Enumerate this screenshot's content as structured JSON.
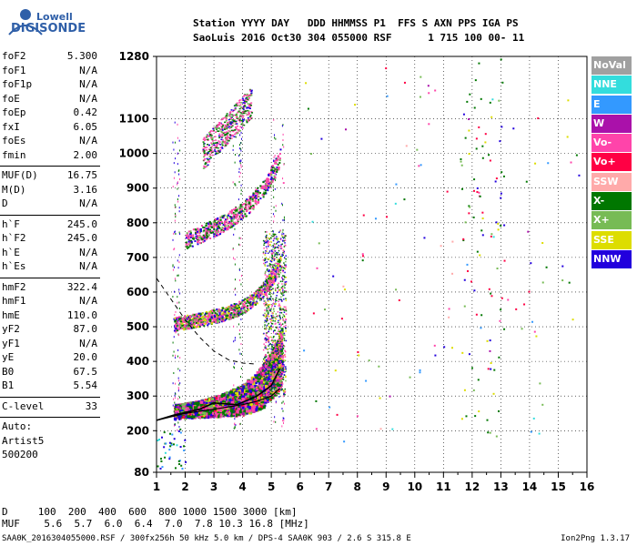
{
  "brand": {
    "line1": "Lowell",
    "line2": "DIGISONDE"
  },
  "header": {
    "labels": "Station YYYY DAY   DDD HHMMSS P1  FFS S AXN PPS IGA PS",
    "values": "SaoLuis 2016 Oct30 304 055000 RSF      1 715 100 00- 11"
  },
  "params": {
    "group1": [
      {
        "name": "foF2",
        "value": "5.300"
      },
      {
        "name": "foF1",
        "value": "N/A"
      },
      {
        "name": "foF1p",
        "value": "N/A"
      },
      {
        "name": "foE",
        "value": "N/A"
      },
      {
        "name": "foEp",
        "value": "0.42"
      },
      {
        "name": "fxI",
        "value": "6.05"
      },
      {
        "name": "foEs",
        "value": "N/A"
      },
      {
        "name": "fmin",
        "value": "2.00"
      }
    ],
    "group2": [
      {
        "name": "MUF(D)",
        "value": "16.75"
      },
      {
        "name": "M(D)",
        "value": "3.16"
      },
      {
        "name": "D",
        "value": "N/A"
      }
    ],
    "group3": [
      {
        "name": "h`F",
        "value": "245.0"
      },
      {
        "name": "h`F2",
        "value": "245.0"
      },
      {
        "name": "h`E",
        "value": "N/A"
      },
      {
        "name": "h`Es",
        "value": "N/A"
      }
    ],
    "group4": [
      {
        "name": "hmF2",
        "value": "322.4"
      },
      {
        "name": "hmF1",
        "value": "N/A"
      },
      {
        "name": "hmE",
        "value": "110.0"
      },
      {
        "name": "yF2",
        "value": "87.0"
      },
      {
        "name": "yF1",
        "value": "N/A"
      },
      {
        "name": "yE",
        "value": "20.0"
      },
      {
        "name": "B0",
        "value": "67.5"
      },
      {
        "name": "B1",
        "value": "5.54"
      }
    ],
    "group5": [
      {
        "name": "C-level",
        "value": "33"
      }
    ],
    "extra": [
      "Auto:",
      "Artist5",
      "500200"
    ]
  },
  "legend": [
    {
      "label": "NoVal",
      "color": "#a0a0a0"
    },
    {
      "label": "NNE",
      "color": "#33dddd"
    },
    {
      "label": "E",
      "color": "#3399ff"
    },
    {
      "label": "W",
      "color": "#aa11aa"
    },
    {
      "label": "Vo-",
      "color": "#ff44aa"
    },
    {
      "label": "Vo+",
      "color": "#ff0044"
    },
    {
      "label": "SSW",
      "color": "#ffaaaa"
    },
    {
      "label": "X-",
      "color": "#007700"
    },
    {
      "label": "X+",
      "color": "#77bb55"
    },
    {
      "label": "SSE",
      "color": "#dddd00"
    },
    {
      "label": "NNW",
      "color": "#2200dd"
    }
  ],
  "footer": {
    "d_row": "D     100  200  400  600  800 1000 1500 3000 [km]",
    "muf_row": "MUF    5.6  5.7  6.0  6.4  7.0  7.8 10.3 16.8 [MHz]",
    "filename": "SAA0K_2016304055000.RSF / 300fx256h 50 kHz 5.0 km / DPS-4 SAA0K 903 / 2.6 S 315.8 E",
    "version": "Ion2Png 1.3.17"
  },
  "chart_data": {
    "type": "scatter",
    "x_unit": "MHz",
    "y_unit": "km",
    "xlim": [
      1,
      16
    ],
    "ylim": [
      80,
      1280
    ],
    "x_ticks": [
      "1",
      "2",
      "3",
      "4",
      "5",
      "6",
      "7",
      "8",
      "9",
      "10",
      "11",
      "12",
      "13",
      "14",
      "15",
      "16"
    ],
    "y_ticks": [
      "80",
      "200",
      "300",
      "400",
      "500",
      "600",
      "700",
      "800",
      "900",
      "1000",
      "1100",
      "1280"
    ],
    "grid": true,
    "legend_position": "right",
    "traces": [
      {
        "name": "F2 O-trace",
        "color": "X-",
        "f_start": 1.8,
        "f_end": 5.3,
        "h_start": 250,
        "h_end": 420
      },
      {
        "name": "F2 X-trace",
        "color": "Vo-",
        "f_start": 1.6,
        "f_end": 4.9,
        "h_start": 250,
        "h_end": 410
      },
      {
        "name": "2nd hop",
        "color": "Vo-",
        "f_start": 1.6,
        "f_end": 5.3,
        "h_start": 500,
        "h_end": 700
      },
      {
        "name": "3rd hop",
        "color": "Vo-",
        "f_start": 2.0,
        "f_end": 5.3,
        "h_start": 740,
        "h_end": 1000
      },
      {
        "name": "4th hop",
        "color": "Vo-",
        "f_start": 2.6,
        "f_end": 4.2,
        "h_start": 990,
        "h_end": 1280
      }
    ],
    "profile_curve": [
      [
        1.0,
        230
      ],
      [
        2.0,
        250
      ],
      [
        3.0,
        262
      ],
      [
        4.0,
        275
      ],
      [
        4.5,
        285
      ],
      [
        5.0,
        300
      ],
      [
        5.3,
        322
      ]
    ],
    "virtual_curve": [
      [
        1.0,
        230
      ],
      [
        1.6,
        245
      ],
      [
        2.5,
        262
      ],
      [
        3.0,
        280
      ],
      [
        3.8,
        275
      ],
      [
        4.5,
        300
      ],
      [
        5.0,
        330
      ],
      [
        5.3,
        380
      ]
    ],
    "dashed_curve": [
      [
        1.0,
        640
      ],
      [
        1.5,
        580
      ],
      [
        2.0,
        520
      ],
      [
        2.5,
        470
      ],
      [
        3.0,
        430
      ],
      [
        3.5,
        405
      ],
      [
        4.0,
        395
      ],
      [
        4.5,
        392
      ]
    ],
    "noise_seed": 17
  }
}
